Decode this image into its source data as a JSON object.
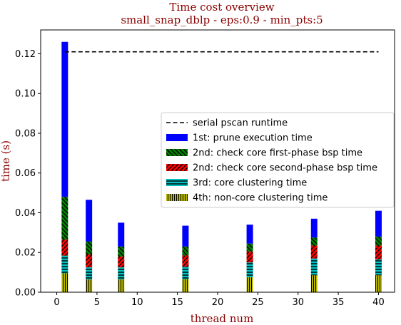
{
  "chart_data": {
    "type": "bar",
    "title": "Time cost overview",
    "subtitle": "small_snap_dblp - eps:0.9 - min_pts:5",
    "xlabel": "thread num",
    "ylabel": "time (s)",
    "xlim": [
      -2,
      42
    ],
    "ylim": [
      0,
      0.132
    ],
    "xticks": [
      0,
      5,
      10,
      15,
      20,
      25,
      30,
      35,
      40
    ],
    "yticks": [
      0.0,
      0.02,
      0.04,
      0.06,
      0.08,
      0.1,
      0.12
    ],
    "ytick_labels": [
      "0.00",
      "0.02",
      "0.04",
      "0.06",
      "0.08",
      "0.10",
      "0.12"
    ],
    "x": [
      1,
      4,
      8,
      16,
      24,
      32,
      40
    ],
    "stacking": "stacked, bottom to top: 4th, 3rd, 2nd second-phase, 2nd first-phase, 1st",
    "reference_line": {
      "name": "serial pscan runtime",
      "value": 0.121,
      "x_range": [
        1,
        40
      ],
      "style": "dashed",
      "color": "#000000"
    },
    "series": [
      {
        "name": "1st: prune execution time",
        "color": "#0000ff",
        "hatch": "none",
        "values": [
          0.078,
          0.021,
          0.012,
          0.0105,
          0.0095,
          0.0095,
          0.013
        ]
      },
      {
        "name": "2nd: check core first-phase bsp time",
        "color": "#008000",
        "hatch": "diagonal-backslash",
        "values": [
          0.0215,
          0.0065,
          0.005,
          0.0045,
          0.004,
          0.004,
          0.0045
        ]
      },
      {
        "name": "2nd: check core second-phase bsp time",
        "color": "#ff0000",
        "hatch": "diagonal-slash",
        "values": [
          0.008,
          0.0065,
          0.0055,
          0.0055,
          0.0055,
          0.0065,
          0.007
        ]
      },
      {
        "name": "3rd: core clustering time",
        "color": "#00bfbf",
        "hatch": "horizontal",
        "values": [
          0.009,
          0.006,
          0.006,
          0.0065,
          0.0075,
          0.0085,
          0.008
        ]
      },
      {
        "name": "4th: non-core clustering time",
        "color": "#bfbf00",
        "hatch": "vertical",
        "values": [
          0.0095,
          0.0065,
          0.0065,
          0.0065,
          0.0075,
          0.0085,
          0.0085
        ]
      }
    ],
    "legend_order": [
      "serial pscan runtime",
      "1st: prune execution time",
      "2nd: check core first-phase bsp time",
      "2nd: check core second-phase bsp time",
      "3rd: core clustering time",
      "4th: non-core clustering time"
    ],
    "legend_position": "center-right",
    "grid": false
  }
}
